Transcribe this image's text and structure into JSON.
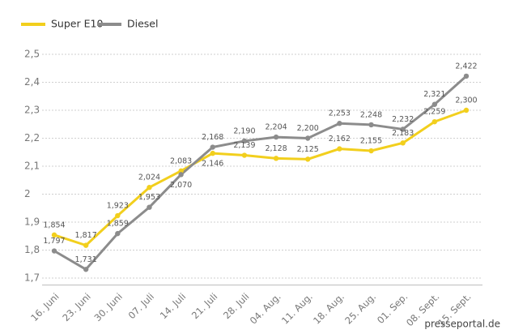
{
  "chart_data": {
    "type": "line",
    "categories": [
      "16. Juni",
      "23. Juni",
      "30. Juni",
      "07. Juli",
      "14. Juli",
      "21. Juli",
      "28. Juli",
      "04. Aug.",
      "11. Aug.",
      "18. Aug.",
      "25. Aug.",
      "01. Sep.",
      "08. Sept.",
      "15. Sept."
    ],
    "series": [
      {
        "name": "Super E10",
        "color": "#f2cf1d",
        "values": [
          1.854,
          1.817,
          1.923,
          2.024,
          2.083,
          2.146,
          2.139,
          2.128,
          2.125,
          2.162,
          2.155,
          2.183,
          2.259,
          2.3
        ],
        "value_labels": [
          "1,854",
          "1,817",
          "1,923",
          "2,024",
          "2,083",
          "2,146",
          "2,139",
          "2,128",
          "2,125",
          "2,162",
          "2,155",
          "2,183",
          "2,259",
          "2,300"
        ]
      },
      {
        "name": "Diesel",
        "color": "#8c8c8c",
        "values": [
          1.797,
          1.731,
          1.859,
          1.953,
          2.07,
          2.168,
          2.19,
          2.204,
          2.2,
          2.253,
          2.248,
          2.232,
          2.321,
          2.422
        ],
        "value_labels": [
          "1,797",
          "1,731",
          "1,859",
          "1,953",
          "2,070",
          "2,168",
          "2,190",
          "2,204",
          "2,200",
          "2,253",
          "2,248",
          "2,232",
          "2,321",
          "2,422"
        ]
      }
    ],
    "ylim": [
      1.675,
      2.5
    ],
    "yticks": [
      {
        "value": 1.7,
        "label": "1,7"
      },
      {
        "value": 1.8,
        "label": "1,8"
      },
      {
        "value": 1.9,
        "label": "1,9"
      },
      2,
      {
        "value": 2.1,
        "label": "2,1"
      },
      {
        "value": 2.2,
        "label": "2,2"
      },
      {
        "value": 2.3,
        "label": "2,3"
      },
      {
        "value": 2.4,
        "label": "2,4"
      },
      {
        "value": 2.5,
        "label": "2,5"
      }
    ],
    "grid": true,
    "legend": "top-left",
    "watermark": "presseportal.de"
  }
}
